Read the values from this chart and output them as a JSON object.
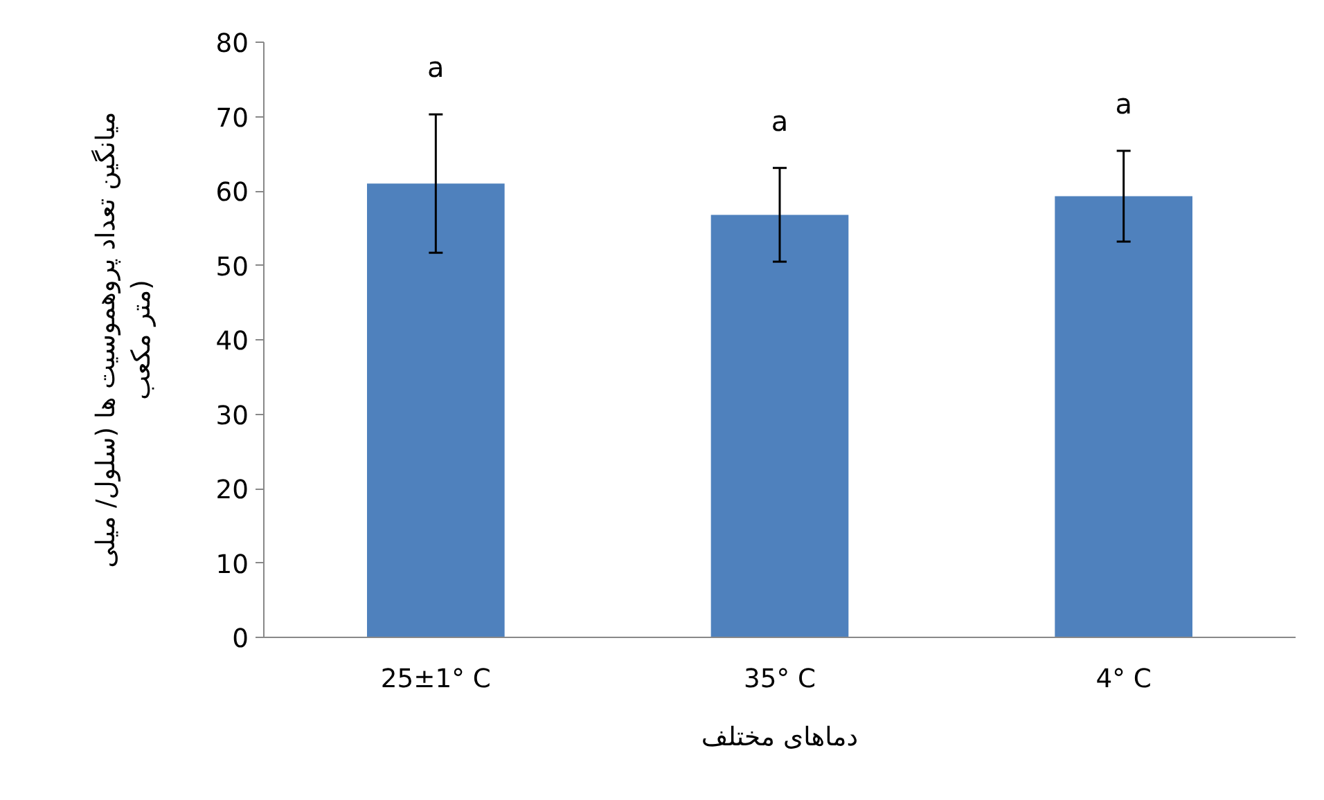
{
  "chart_data": {
    "type": "bar",
    "categories": [
      "25±1° C",
      "35° C",
      "4° C"
    ],
    "values": [
      61.0,
      56.8,
      59.3
    ],
    "errors": [
      9.3,
      6.3,
      6.1
    ],
    "color": "#4f81bd",
    "xlabel": "دماهای مختلف",
    "ylabel": "میانگین تعداد پروهموسیت ها (سلول/ میلی متر مکعب)",
    "ylim": [
      0,
      80
    ],
    "yticks": [
      0,
      10,
      20,
      30,
      40,
      50,
      60,
      70,
      80
    ],
    "grid": false,
    "annotations": [
      "a",
      "a",
      "a"
    ]
  }
}
